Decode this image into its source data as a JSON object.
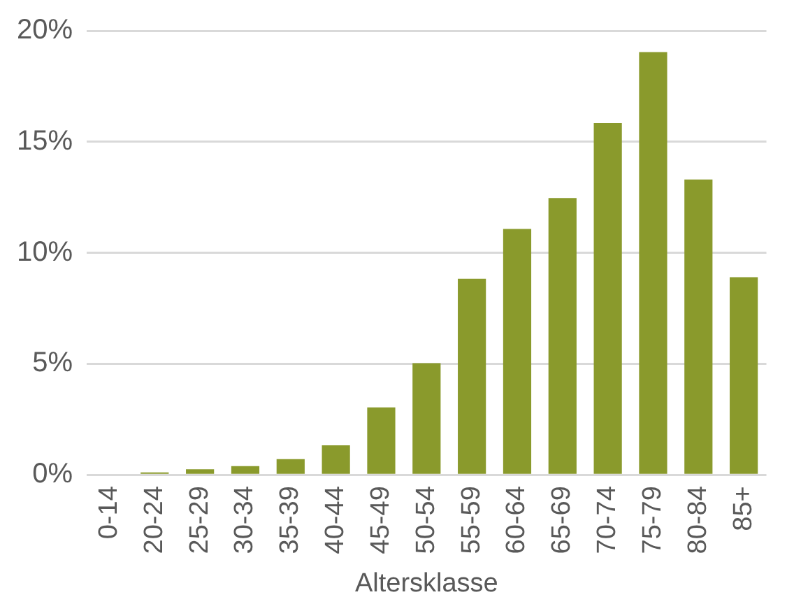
{
  "chart_data": {
    "type": "bar",
    "xlabel": "Altersklasse",
    "categories": [
      "0-14",
      "20-24",
      "25-29",
      "30-34",
      "35-39",
      "40-44",
      "45-49",
      "50-54",
      "55-59",
      "60-64",
      "65-69",
      "70-74",
      "75-79",
      "80-84",
      "85+"
    ],
    "values": [
      0,
      0.11,
      0.25,
      0.39,
      0.71,
      1.33,
      3.04,
      5.03,
      8.83,
      11.07,
      12.47,
      15.84,
      19.04,
      13.3,
      8.9
    ],
    "color": "#8a9a2c",
    "ylim": [
      0,
      20
    ],
    "yticks": [
      {
        "value": 0,
        "label": "0%"
      },
      {
        "value": 5,
        "label": "5%"
      },
      {
        "value": 10,
        "label": "10%"
      },
      {
        "value": 15,
        "label": "15%"
      },
      {
        "value": 20,
        "label": "20%"
      }
    ],
    "grid": "y"
  }
}
